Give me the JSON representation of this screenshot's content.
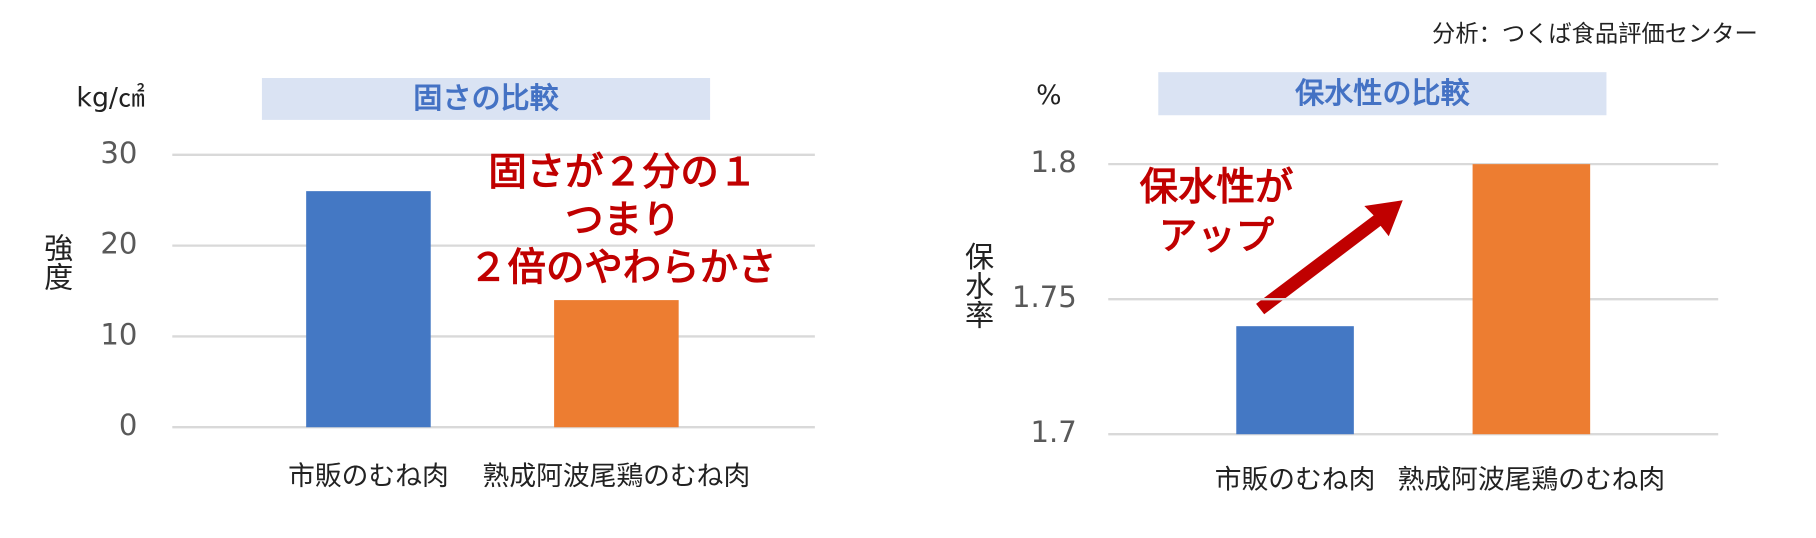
{
  "source": "分析：つくば食品評価センター",
  "chart_data": [
    {
      "type": "bar",
      "title": "固さの比較",
      "unit": "kg/㎠",
      "y_label": "強度",
      "categories": [
        "市販のむね肉",
        "熟成阿波尾鶏のむね肉"
      ],
      "values": [
        26,
        14
      ],
      "colors": [
        "#4478c4",
        "#ed7d31"
      ],
      "ylim": [
        0,
        30
      ],
      "yticks": [
        0,
        10,
        20,
        30
      ],
      "grid": true,
      "annotation": [
        "固さが２分の１",
        "つまり",
        "２倍のやわらかさ"
      ]
    },
    {
      "type": "bar",
      "title": "保水性の比較",
      "unit": "%",
      "y_label": "保水率",
      "categories": [
        "市販のむね肉",
        "熟成阿波尾鶏のむね肉"
      ],
      "values": [
        1.74,
        1.8
      ],
      "colors": [
        "#4478c4",
        "#ed7d31"
      ],
      "ylim": [
        1.7,
        1.8
      ],
      "yticks": [
        1.7,
        1.75,
        1.8
      ],
      "grid": true,
      "annotation": [
        "保水性が",
        "アップ"
      ]
    }
  ]
}
